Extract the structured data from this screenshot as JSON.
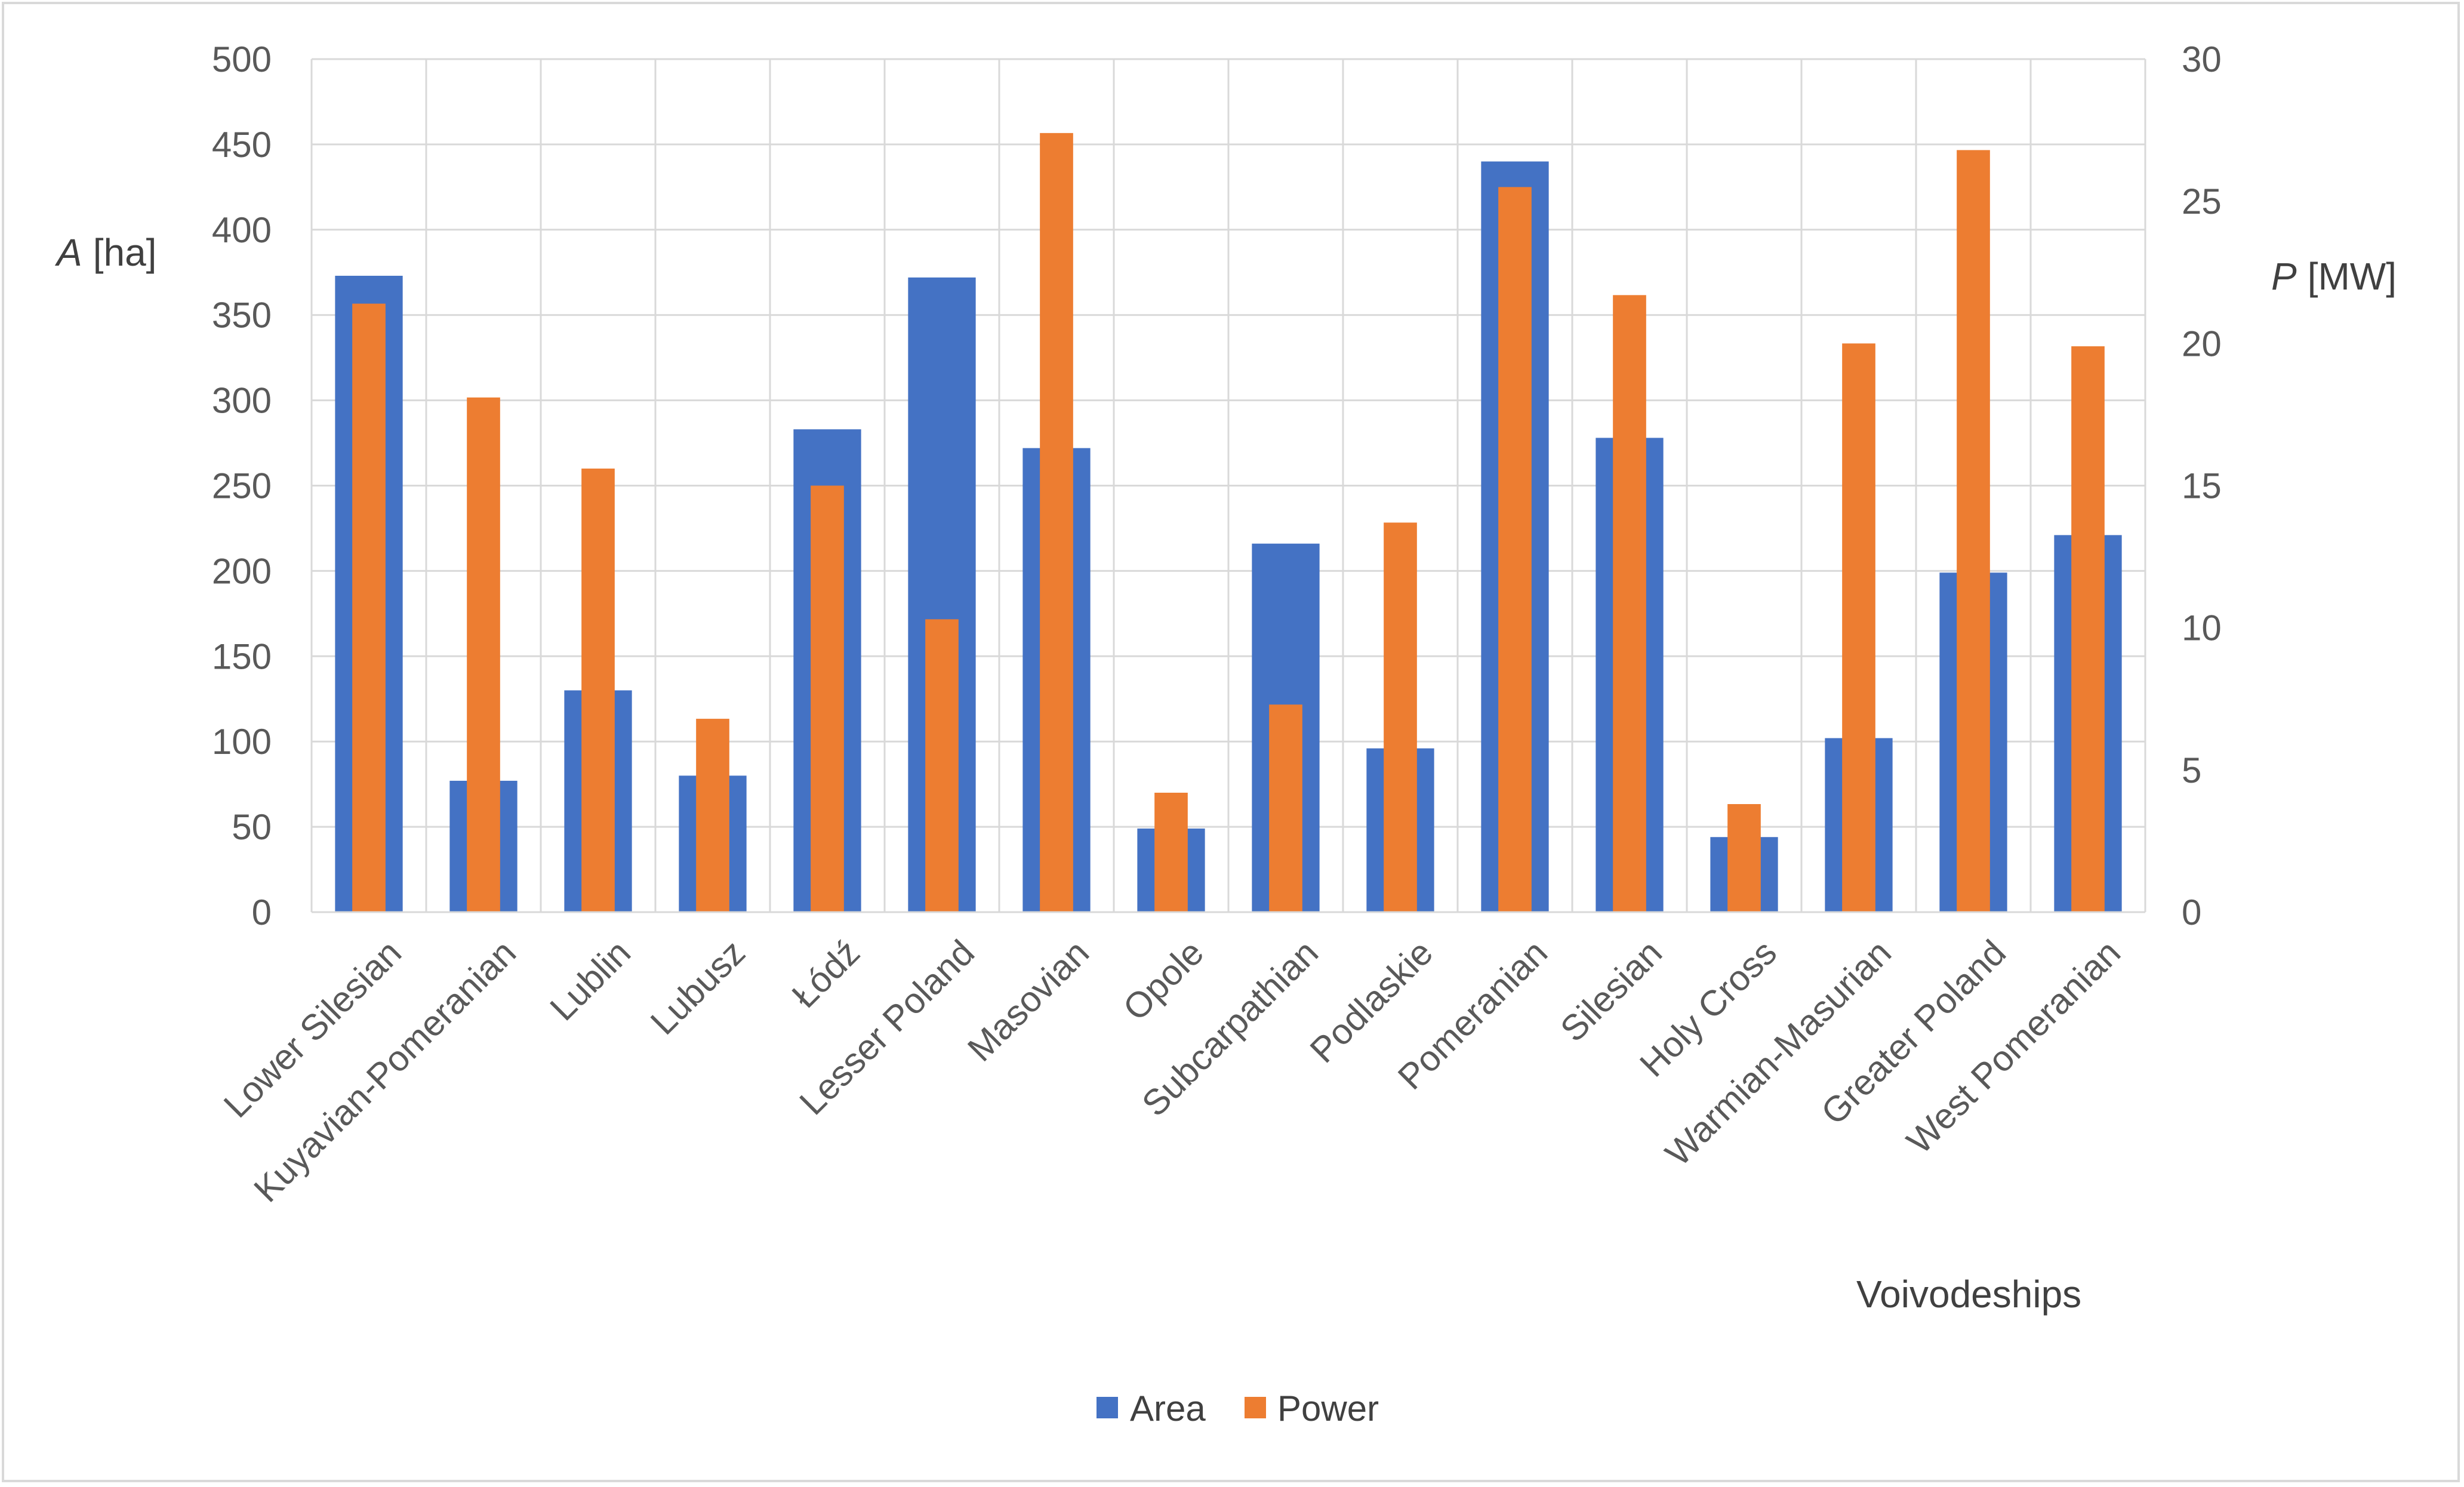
{
  "chart_data": {
    "type": "bar",
    "title": "",
    "xlabel": "Voivodeships",
    "ylabel": {
      "symbol": "A",
      "unit": "[ha]"
    },
    "y2label": {
      "symbol": "P",
      "unit": "[MW]"
    },
    "ylim": [
      0,
      500
    ],
    "y2lim": [
      0,
      30
    ],
    "yticks": [
      "0",
      "50",
      "100",
      "150",
      "200",
      "250",
      "300",
      "350",
      "400",
      "450",
      "500"
    ],
    "y2ticks": [
      "0",
      "5",
      "10",
      "15",
      "20",
      "25",
      "30"
    ],
    "grid": true,
    "legend_position": "bottom",
    "categories": [
      "Lower Silesian",
      "Kuyavian-Pomeranian",
      "Lublin",
      "Lubusz",
      "Łódź",
      "Lesser Poland",
      "Masovian",
      "Opole",
      "Subcarpathian",
      "Podlaskie",
      "Pomeranian",
      "Silesian",
      "Holy Cross",
      "Warmian-Masurian",
      "Greater Poland",
      "West Pomeranian"
    ],
    "series": [
      {
        "name": "Area",
        "axis": "left",
        "color": "#4472c4",
        "values": [
          373,
          77,
          130,
          80,
          283,
          372,
          272,
          49,
          216,
          96,
          440,
          278,
          44,
          102,
          199,
          221
        ]
      },
      {
        "name": "Power",
        "axis": "right",
        "color": "#ed7d31",
        "values": [
          21.4,
          18.1,
          15.6,
          6.8,
          15.0,
          10.3,
          27.4,
          4.2,
          7.3,
          13.7,
          25.5,
          21.7,
          3.8,
          20.0,
          26.8,
          19.9
        ]
      }
    ]
  }
}
